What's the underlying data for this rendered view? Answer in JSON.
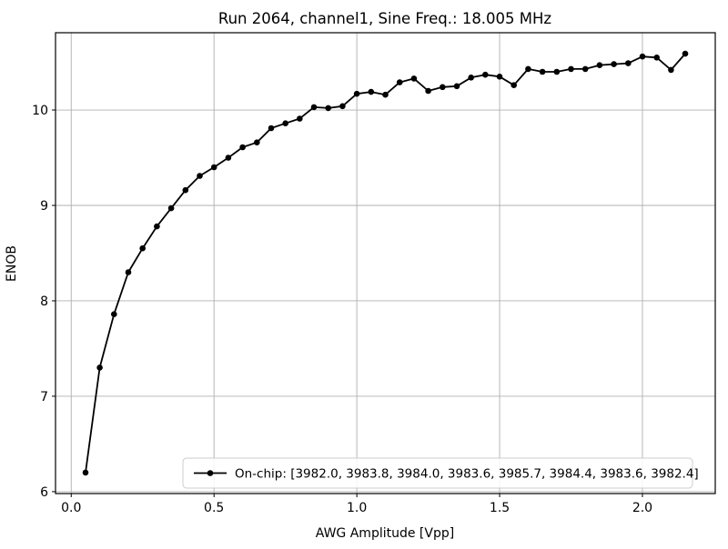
{
  "figure": {
    "title": "Run 2064, channel1, Sine Freq.: 18.005 MHz"
  },
  "chart_data": {
    "type": "line",
    "title": "Run 2064, channel1, Sine Freq.: 18.005 MHz",
    "xlabel": "AWG Amplitude [Vpp]",
    "ylabel": "ENOB",
    "xlim": [
      -0.055,
      2.255
    ],
    "ylim": [
      5.98,
      10.81
    ],
    "xticks": [
      0.0,
      0.5,
      1.0,
      1.5,
      2.0
    ],
    "xtick_labels": [
      "0.0",
      "0.5",
      "1.0",
      "1.5",
      "2.0"
    ],
    "yticks": [
      6,
      7,
      8,
      9,
      10
    ],
    "ytick_labels": [
      "6",
      "7",
      "8",
      "9",
      "10"
    ],
    "grid": true,
    "legend_position": "lower center",
    "series": [
      {
        "name": "On-chip: [3982.0, 3983.8, 3984.0, 3983.6, 3985.7, 3984.4, 3983.6, 3982.4]",
        "color": "#000000",
        "marker": "circle",
        "x": [
          0.05,
          0.1,
          0.15,
          0.2,
          0.25,
          0.3,
          0.35,
          0.4,
          0.45,
          0.5,
          0.55,
          0.6,
          0.65,
          0.7,
          0.75,
          0.8,
          0.85,
          0.9,
          0.95,
          1.0,
          1.05,
          1.1,
          1.15,
          1.2,
          1.25,
          1.3,
          1.35,
          1.4,
          1.45,
          1.5,
          1.55,
          1.6,
          1.65,
          1.7,
          1.75,
          1.8,
          1.85,
          1.9,
          1.95,
          2.0,
          2.05,
          2.1,
          2.15
        ],
        "y": [
          6.2,
          7.3,
          7.86,
          8.3,
          8.55,
          8.78,
          8.97,
          9.16,
          9.31,
          9.4,
          9.5,
          9.61,
          9.66,
          9.81,
          9.86,
          9.91,
          10.03,
          10.02,
          10.04,
          10.17,
          10.19,
          10.16,
          10.29,
          10.33,
          10.2,
          10.24,
          10.25,
          10.34,
          10.37,
          10.35,
          10.26,
          10.43,
          10.4,
          10.4,
          10.43,
          10.43,
          10.47,
          10.48,
          10.49,
          10.56,
          10.55,
          10.42,
          10.59
        ]
      }
    ]
  },
  "colors": {
    "background": "#ffffff",
    "line": "#000000",
    "grid": "#b0b0b0",
    "spine": "#000000",
    "legend_border": "#cccccc",
    "legend_fill": "#ffffff"
  }
}
